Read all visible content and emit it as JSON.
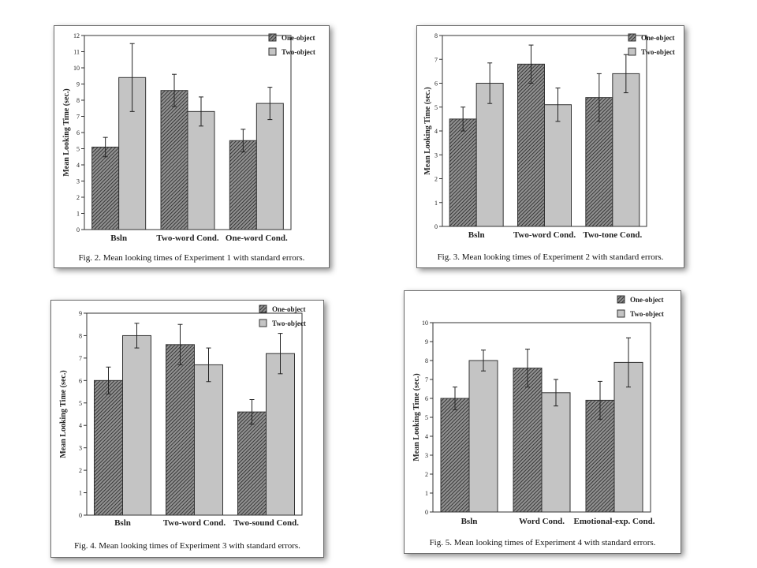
{
  "colors": {
    "one_object_fill": "#8f8f8f",
    "one_object_hatch": "#1e1e1e",
    "two_object_fill": "#c4c4c4",
    "frame": "#333333"
  },
  "chart_data": [
    {
      "type": "bar",
      "caption": "Fig. 2. Mean looking times of Experiment 1 with standard errors.",
      "ylabel": "Mean Looking Time (sec.)",
      "ylim": [
        0,
        12
      ],
      "yticks": [
        0,
        1,
        2,
        3,
        4,
        5,
        6,
        7,
        8,
        9,
        10,
        11,
        12
      ],
      "categories": [
        "Bsln",
        "Two-word Cond.",
        "One-word Cond."
      ],
      "legend": "top-right",
      "series": [
        {
          "name": "One-object",
          "values": [
            5.1,
            8.6,
            5.5
          ],
          "errors": [
            0.6,
            1.0,
            0.7
          ]
        },
        {
          "name": "Two-object",
          "values": [
            9.4,
            7.3,
            7.8
          ],
          "errors": [
            2.1,
            0.9,
            1.0
          ]
        }
      ]
    },
    {
      "type": "bar",
      "caption": "Fig. 3. Mean looking times of Experiment 2 with standard errors.",
      "ylabel": "Mean Looking Time (sec.)",
      "ylim": [
        0,
        8
      ],
      "yticks": [
        0,
        1,
        2,
        3,
        4,
        5,
        6,
        7,
        8
      ],
      "categories": [
        "Bsln",
        "Two-word Cond.",
        "Two-tone Cond."
      ],
      "legend": "top-right",
      "series": [
        {
          "name": "One-object",
          "values": [
            4.5,
            6.8,
            5.4
          ],
          "errors": [
            0.5,
            0.8,
            1.0
          ]
        },
        {
          "name": "Two-object",
          "values": [
            6.0,
            5.1,
            6.4
          ],
          "errors": [
            0.85,
            0.7,
            0.8
          ]
        }
      ]
    },
    {
      "type": "bar",
      "caption": "Fig. 4. Mean looking times of Experiment 3 with standard errors.",
      "ylabel": "Mean Looking Time (sec.)",
      "ylim": [
        0,
        9
      ],
      "yticks": [
        0,
        1,
        2,
        3,
        4,
        5,
        6,
        7,
        8,
        9
      ],
      "categories": [
        "Bsln",
        "Two-word Cond.",
        "Two-sound Cond."
      ],
      "legend": "top-right",
      "series": [
        {
          "name": "One-object",
          "values": [
            6.0,
            7.6,
            4.6
          ],
          "errors": [
            0.6,
            0.9,
            0.55
          ]
        },
        {
          "name": "Two-object",
          "values": [
            8.0,
            6.7,
            7.2
          ],
          "errors": [
            0.55,
            0.75,
            0.9
          ]
        }
      ]
    },
    {
      "type": "bar",
      "caption": "Fig. 5. Mean looking times of Experiment 4 with standard errors.",
      "ylabel": "Mean Looking Time (sec.)",
      "ylim": [
        0,
        10
      ],
      "yticks": [
        0,
        1,
        2,
        3,
        4,
        5,
        6,
        7,
        8,
        9,
        10
      ],
      "categories": [
        "Bsln",
        "Word Cond.",
        "Emotional-exp. Cond."
      ],
      "legend": "top-right",
      "series": [
        {
          "name": "One-object",
          "values": [
            6.0,
            7.6,
            5.9
          ],
          "errors": [
            0.6,
            1.0,
            1.0
          ]
        },
        {
          "name": "Two-object",
          "values": [
            8.0,
            6.3,
            7.9
          ],
          "errors": [
            0.55,
            0.7,
            1.3
          ]
        }
      ]
    }
  ]
}
